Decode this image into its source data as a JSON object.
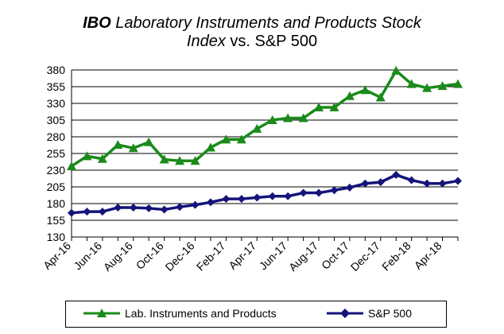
{
  "title": {
    "part1_bold": "IBO",
    "part2": " Laboratory Instruments and Products Stock",
    "part3": "Index",
    "part4": " vs. S&P 500"
  },
  "chart_data": {
    "type": "line",
    "title": "IBO Laboratory Instruments and Products Stock Index vs. S&P 500",
    "xlabel": "",
    "ylabel": "",
    "ylim": [
      130,
      380
    ],
    "yticks": [
      130,
      155,
      180,
      205,
      230,
      255,
      280,
      305,
      330,
      355,
      380
    ],
    "grid": true,
    "legend_position": "bottom",
    "x_labels": [
      "Apr-16",
      "Jun-16",
      "Aug-16",
      "Oct-16",
      "Dec-16",
      "Feb-17",
      "Apr-17",
      "Jun-17",
      "Aug-17",
      "Oct-17",
      "Dec-17",
      "Feb-18",
      "Apr-18"
    ],
    "x": [
      "Apr-16",
      "May-16",
      "Jun-16",
      "Jul-16",
      "Aug-16",
      "Sep-16",
      "Oct-16",
      "Nov-16",
      "Dec-16",
      "Jan-17",
      "Feb-17",
      "Mar-17",
      "Apr-17",
      "May-17",
      "Jun-17",
      "Jul-17",
      "Aug-17",
      "Sep-17",
      "Oct-17",
      "Nov-17",
      "Dec-17",
      "Jan-18",
      "Feb-18",
      "Mar-18",
      "Apr-18",
      "May-18"
    ],
    "series": [
      {
        "name": "Lab. Instruments and Products",
        "color": "#1a8a1a",
        "marker": "triangle",
        "values": [
          236,
          251,
          247,
          268,
          263,
          272,
          246,
          244,
          244,
          264,
          276,
          276,
          292,
          305,
          308,
          308,
          324,
          324,
          341,
          350,
          339,
          379,
          359,
          353,
          356,
          359
        ]
      },
      {
        "name": "S&P 500",
        "color": "#14147a",
        "marker": "diamond",
        "values": [
          166,
          168,
          168,
          174,
          174,
          173,
          171,
          175,
          178,
          182,
          187,
          187,
          189,
          191,
          191,
          196,
          196,
          200,
          204,
          210,
          212,
          223,
          215,
          210,
          210,
          214
        ]
      }
    ]
  }
}
